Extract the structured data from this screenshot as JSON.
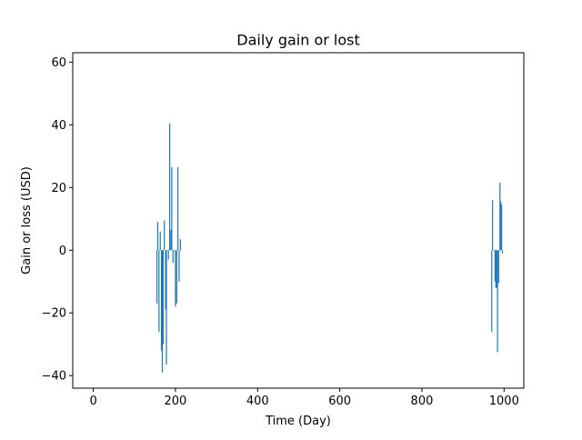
{
  "chart_data": {
    "type": "bar",
    "title": "Daily gain or lost",
    "xlabel": "Time (Day)",
    "ylabel": "Gain or loss (USD)",
    "xlim": [
      -50,
      1048
    ],
    "ylim": [
      -44,
      63
    ],
    "xticks": [
      0,
      200,
      400,
      600,
      800,
      1000
    ],
    "yticks": [
      -40,
      -20,
      0,
      20,
      40,
      60
    ],
    "grid": false,
    "bar_color": "#1f77b4",
    "series": [
      {
        "values": [
          [
            155,
            -17
          ],
          [
            157,
            9
          ],
          [
            160,
            -26
          ],
          [
            163,
            6
          ],
          [
            166,
            -32
          ],
          [
            168,
            -39
          ],
          [
            170,
            -30
          ],
          [
            173,
            9.5
          ],
          [
            176,
            -19
          ],
          [
            178,
            -36.5
          ],
          [
            180,
            0
          ],
          [
            183,
            -3
          ],
          [
            186,
            40.5
          ],
          [
            189,
            6.5
          ],
          [
            191,
            26.5
          ],
          [
            194,
            -4
          ],
          [
            197,
            0
          ],
          [
            200,
            -18
          ],
          [
            203,
            -17
          ],
          [
            206,
            26.5
          ],
          [
            209,
            -10
          ],
          [
            212,
            3.5
          ],
          [
            970,
            -26
          ],
          [
            972,
            16
          ],
          [
            975,
            0
          ],
          [
            978,
            -10
          ],
          [
            980,
            -12
          ],
          [
            982,
            -12
          ],
          [
            984,
            -32.5
          ],
          [
            987,
            -10.5
          ],
          [
            990,
            21.5
          ],
          [
            992,
            15.5
          ],
          [
            994,
            14.5
          ],
          [
            996,
            -1
          ]
        ]
      }
    ]
  }
}
